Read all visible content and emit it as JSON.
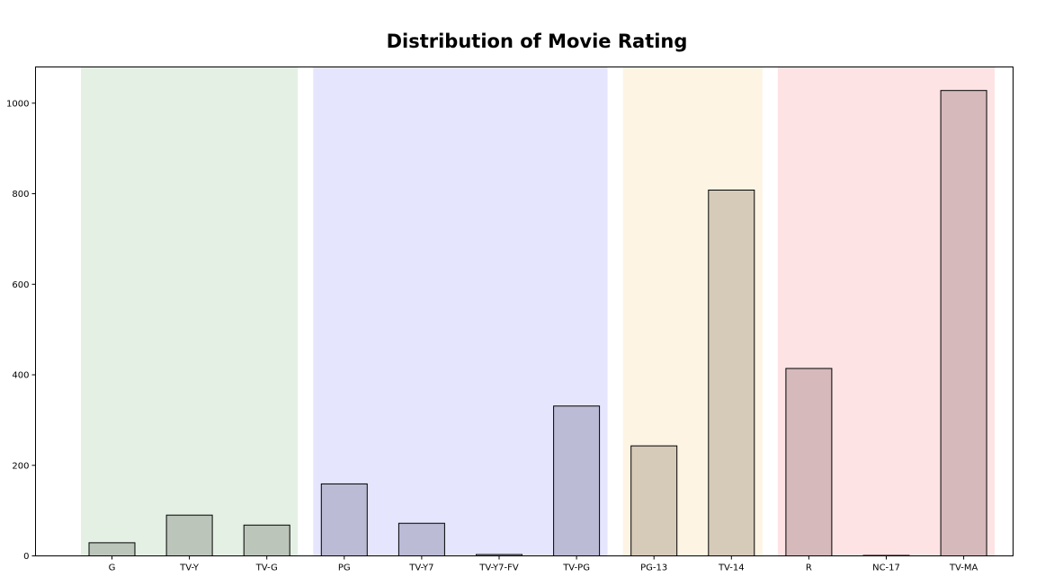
{
  "chart_data": {
    "type": "bar",
    "title": "Distribution of Movie Rating",
    "xlabel": "",
    "ylabel": "",
    "ylim": [
      0,
      1080
    ],
    "yticks": [
      0,
      200,
      400,
      600,
      800,
      1000
    ],
    "categories": [
      "G",
      "TV-Y",
      "TV-G",
      "PG",
      "TV-Y7",
      "TV-Y7-FV",
      "TV-PG",
      "PG-13",
      "TV-14",
      "R",
      "NC-17",
      "TV-MA"
    ],
    "values": [
      29,
      90,
      68,
      159,
      72,
      3,
      331,
      243,
      808,
      414,
      1,
      1028
    ],
    "grid": false,
    "bar_colors": [
      "#bcc5ba",
      "#bcc5ba",
      "#bcc5ba",
      "#bbbbd6",
      "#bbbbd6",
      "#bbbbd6",
      "#bbbbd6",
      "#d6cbb9",
      "#d6cbb9",
      "#d6b9bb",
      "#d6b9bb",
      "#d6b9bb"
    ],
    "bar_edge_color": "#000000",
    "groups": [
      {
        "start": 0,
        "end": 2,
        "color": "#e5f0e4"
      },
      {
        "start": 3,
        "end": 6,
        "color": "#e5e5fe"
      },
      {
        "start": 7,
        "end": 8,
        "color": "#fdf4e3"
      },
      {
        "start": 9,
        "end": 11,
        "color": "#fee3e4"
      }
    ]
  }
}
